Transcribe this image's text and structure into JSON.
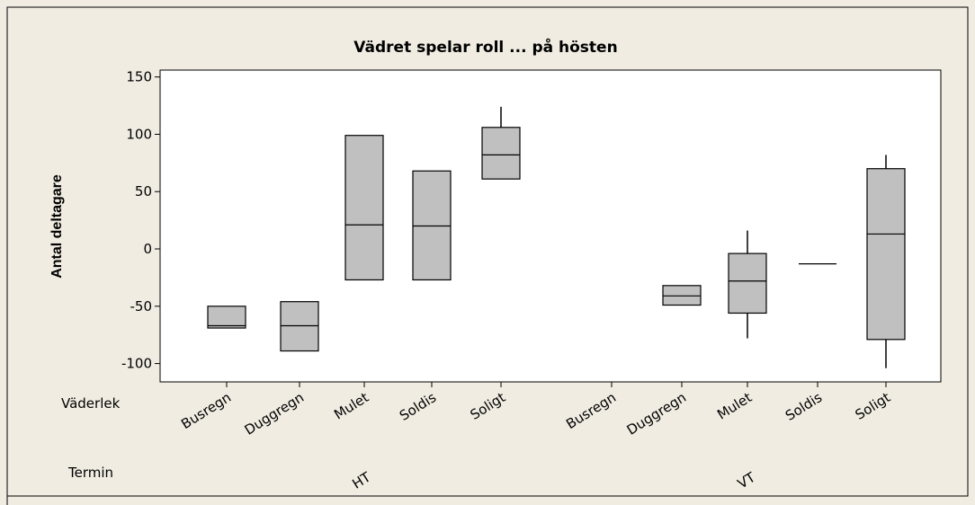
{
  "chart_data": {
    "type": "boxplot",
    "title": "Vädret spelar roll ... på hösten",
    "y_label": "Antal deltagare",
    "x_label": "Väderlek",
    "group_label": "Termin",
    "categories": [
      "Busregn",
      "Duggregn",
      "Mulet",
      "Soldis",
      "Soligt",
      "Busregn",
      "Duggregn",
      "Mulet",
      "Soldis",
      "Soligt"
    ],
    "groups": [
      {
        "name": "HT",
        "size": 5
      },
      {
        "name": "VT",
        "size": 5
      }
    ],
    "boxes": [
      {
        "min": -69,
        "q1": -69,
        "median": -67,
        "q3": -50,
        "max": -50
      },
      {
        "min": -89,
        "q1": -89,
        "median": -67,
        "q3": -46,
        "max": -46
      },
      {
        "min": -27,
        "q1": -27,
        "median": 21,
        "q3": 99,
        "max": 99
      },
      {
        "min": -27,
        "q1": -27,
        "median": 20,
        "q3": 68,
        "max": 68
      },
      {
        "min": 61,
        "q1": 61,
        "median": 82,
        "q3": 106,
        "max": 124
      },
      null,
      {
        "min": -49,
        "q1": -49,
        "median": -41,
        "q3": -32,
        "max": -32
      },
      {
        "min": -78,
        "q1": -56,
        "median": -28,
        "q3": -4,
        "max": 16
      },
      {
        "min": -13,
        "q1": -13,
        "median": -13,
        "q3": -13,
        "max": -13
      },
      {
        "min": -104,
        "q1": -79,
        "median": 13,
        "q3": 70,
        "max": 82
      }
    ],
    "color": "#c0c0c0",
    "ylim": [
      -116,
      156
    ],
    "yticks": [
      -100,
      -50,
      0,
      50,
      100,
      150
    ]
  }
}
